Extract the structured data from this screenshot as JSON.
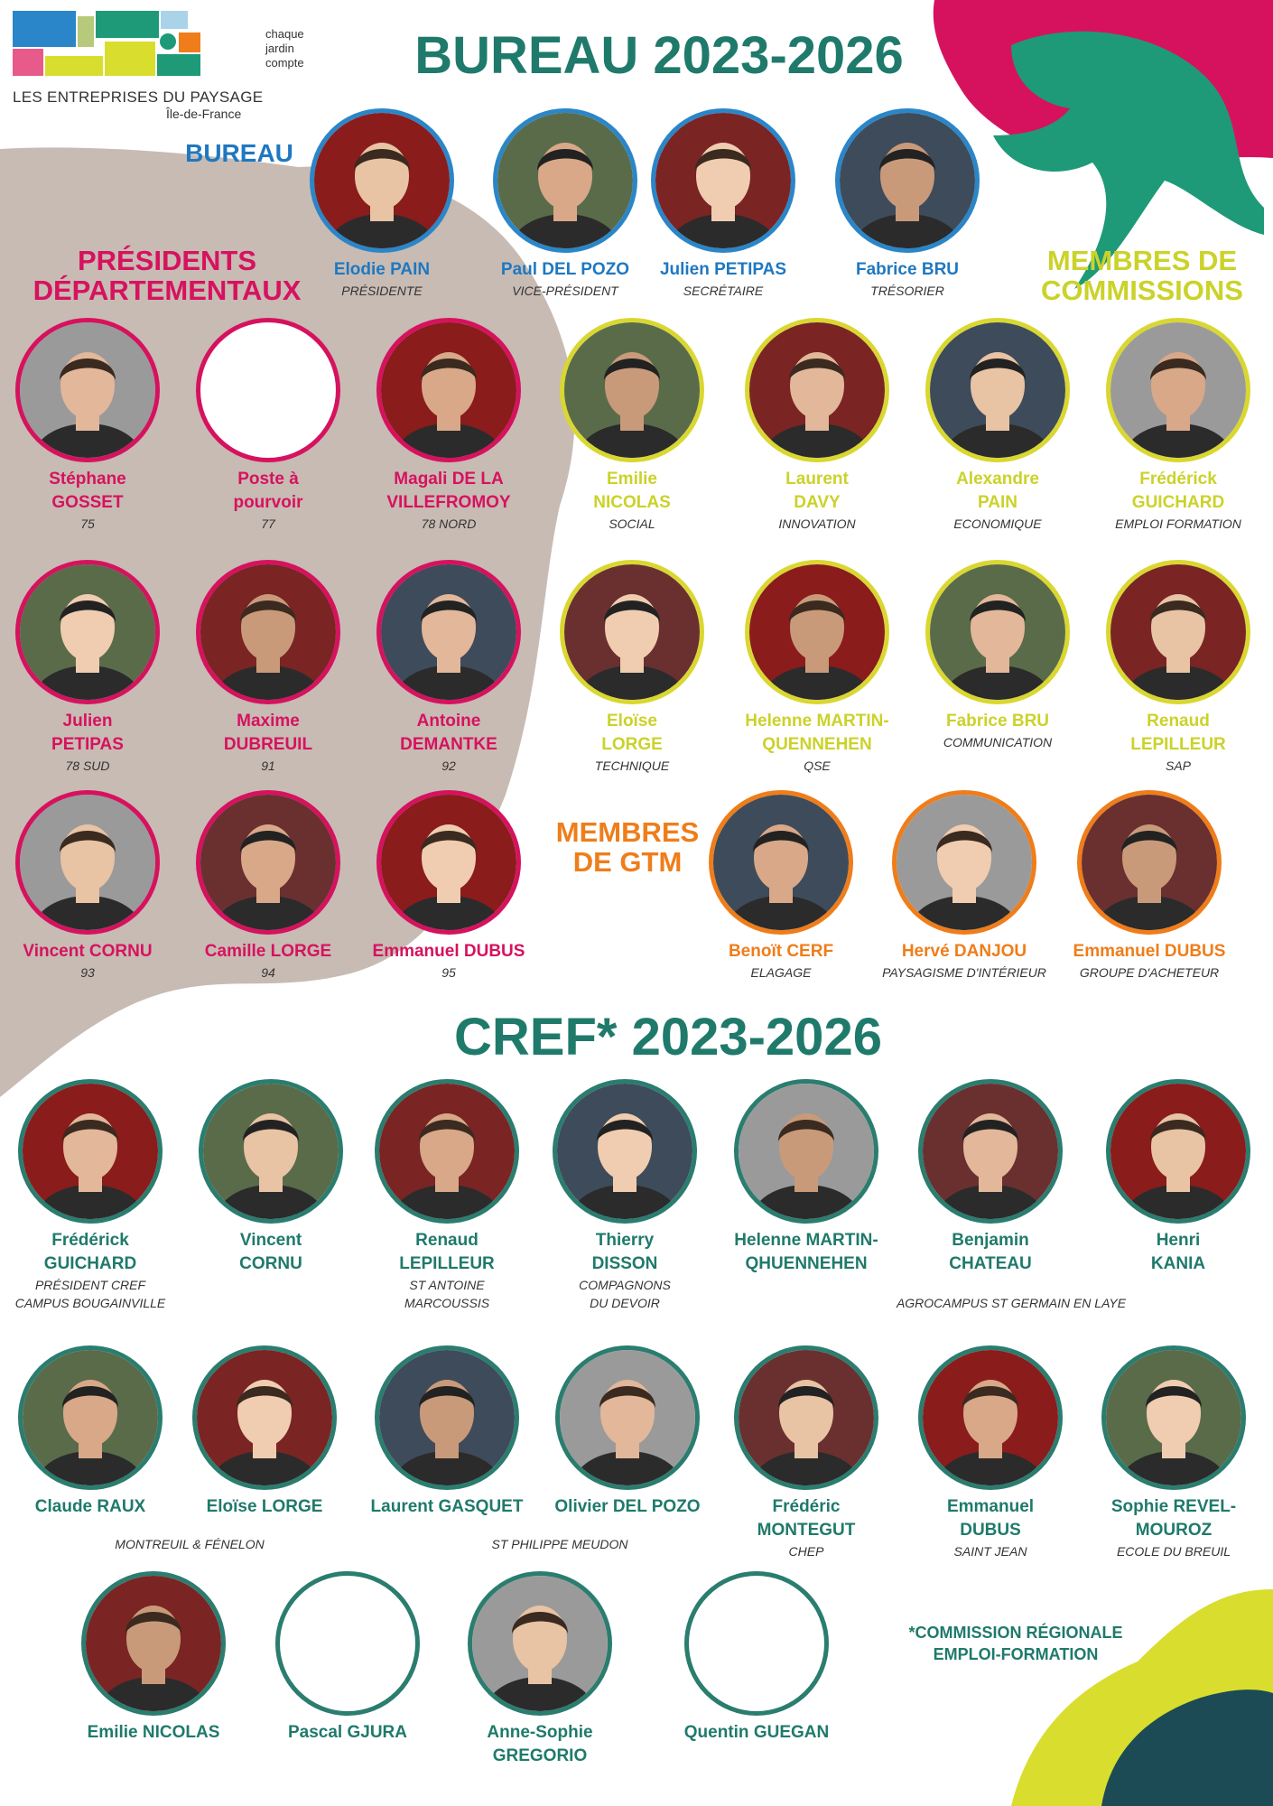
{
  "brand": {
    "tagline": "chaque\njardin\ncompte",
    "name": "LES ENTREPRISES DU PAYSAGE",
    "region": "Île-de-France"
  },
  "colors": {
    "teal": "#1f7a6b",
    "blue": "#1f78c0",
    "pink": "#d6125f",
    "yellow": "#cbd22a",
    "orange": "#ef7d1a",
    "beige": "#c8bbb3"
  },
  "titles": {
    "bureau": "BUREAU 2023-2026",
    "cref": "CREF* 2023-2026"
  },
  "sections": {
    "bureau": "BUREAU",
    "presidents": "PRÉSIDENTS\nDÉPARTEMENTAUX",
    "commissions": "MEMBRES DE\nCOMMISSIONS",
    "gtm": "MEMBRES\nDE GTM"
  },
  "bureau": [
    {
      "name": "Elodie PAIN",
      "role": "Présidente"
    },
    {
      "name": "Paul DEL POZO",
      "role": "Vice-Président"
    },
    {
      "name": "Julien PETIPAS",
      "role": "Secrétaire"
    },
    {
      "name": "Fabrice BRU",
      "role": "Trésorier"
    }
  ],
  "presidents": [
    {
      "name": "Stéphane\nGOSSET",
      "role": "75"
    },
    {
      "name": "Poste à\npourvoir",
      "role": "77"
    },
    {
      "name": "Magali DE LA\nVILLEFROMOY",
      "role": "78 NORD"
    },
    {
      "name": "Julien\nPETIPAS",
      "role": "78 SUD"
    },
    {
      "name": "Maxime\nDUBREUIL",
      "role": "91"
    },
    {
      "name": "Antoine\nDEMANTKE",
      "role": "92"
    },
    {
      "name": "Vincent CORNU",
      "role": "93"
    },
    {
      "name": "Camille LORGE",
      "role": "94"
    },
    {
      "name": "Emmanuel DUBUS",
      "role": "95"
    }
  ],
  "commissions": [
    {
      "name": "Emilie\nNICOLAS",
      "role": "Social"
    },
    {
      "name": "Laurent\nDAVY",
      "role": "Innovation"
    },
    {
      "name": "Alexandre\nPAIN",
      "role": "Economique"
    },
    {
      "name": "Frédérick\nGUICHARD",
      "role": "Emploi formation"
    },
    {
      "name": "Eloïse\nLORGE",
      "role": "Technique"
    },
    {
      "name": "Helenne MARTIN-\nQUENNEHEN",
      "role": "QSE"
    },
    {
      "name": "Fabrice BRU",
      "role": "Communication"
    },
    {
      "name": "Renaud\nLEPILLEUR",
      "role": "SAP"
    }
  ],
  "gtm": [
    {
      "name": "Benoït CERF",
      "role": "Elagage"
    },
    {
      "name": "Hervé DANJOU",
      "role": "Paysagisme d'intérieur"
    },
    {
      "name": "Emmanuel DUBUS",
      "role": "Groupe d'acheteur"
    }
  ],
  "cref": [
    {
      "name": "Frédérick\nGUICHARD",
      "role": "Président CREF\nCampus Bougainville"
    },
    {
      "name": "Vincent\nCORNU",
      "role": ""
    },
    {
      "name": "Renaud\nLEPILLEUR",
      "role": "St Antoine\nMarcoussis"
    },
    {
      "name": "Thierry\nDISSON",
      "role": "Compagnons\ndu devoir"
    },
    {
      "name": "Helenne MARTIN-\nQHUENNEHEN",
      "role": ""
    },
    {
      "name": "Benjamin\nCHATEAU",
      "role": ""
    },
    {
      "name": "Henri\nKANIA",
      "role": ""
    },
    {
      "name": "Claude RAUX",
      "role": ""
    },
    {
      "name": "Eloïse LORGE",
      "role": ""
    },
    {
      "name": "Laurent GASQUET",
      "role": ""
    },
    {
      "name": "Olivier DEL POZO",
      "role": ""
    },
    {
      "name": "Frédéric\nMONTEGUT",
      "role": "CHEP"
    },
    {
      "name": "Emmanuel\nDUBUS",
      "role": "Saint Jean"
    },
    {
      "name": "Sophie REVEL-\nMOUROZ",
      "role": "Ecole du Breuil"
    },
    {
      "name": "Emilie NICOLAS",
      "role": ""
    },
    {
      "name": "Pascal GJURA",
      "role": ""
    },
    {
      "name": "Anne-Sophie\nGREGORIO",
      "role": ""
    },
    {
      "name": "Quentin GUEGAN",
      "role": ""
    }
  ],
  "affiliations": {
    "agrocampus": "Agrocampus St Germain en Laye",
    "montreuil": "Montreuil & Fénelon",
    "philippe": "St Philippe Meudon"
  },
  "footnote": "*COMMISSION RÉGIONALE\nEMPLOI-FORMATION"
}
